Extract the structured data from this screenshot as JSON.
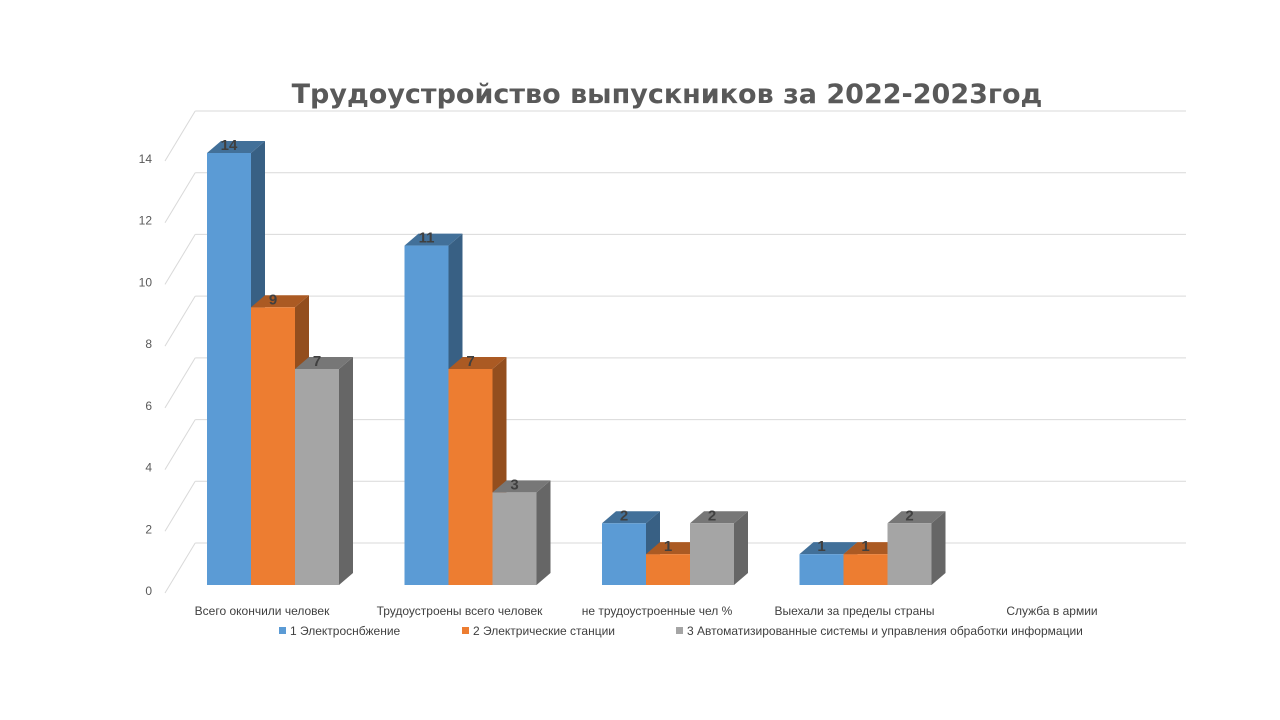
{
  "chart_data": {
    "type": "bar",
    "title": "Трудоустройство выпускников за 2022-2023год",
    "categories": [
      "Всего окончили человек",
      "Трудоустроены всего человек",
      "не трудоустроенные чел %",
      "Выехали за пределы страны",
      "Служба в армии"
    ],
    "series": [
      {
        "name": "1 Электроснбжение",
        "values": [
          14,
          11,
          2,
          1,
          null
        ],
        "color": "#5B9BD5"
      },
      {
        "name": "2 Электрические станции",
        "values": [
          9,
          7,
          1,
          1,
          null
        ],
        "color": "#ED7D31"
      },
      {
        "name": "3 Автоматизированные системы и управления обработки информации",
        "values": [
          7,
          3,
          2,
          2,
          null
        ],
        "color": "#A5A5A5"
      }
    ],
    "yticks": [
      0,
      2,
      4,
      6,
      8,
      10,
      12,
      14
    ],
    "ylim": [
      0,
      14
    ],
    "grid": true,
    "legend_position": "bottom",
    "style": "3d-clustered-column"
  }
}
